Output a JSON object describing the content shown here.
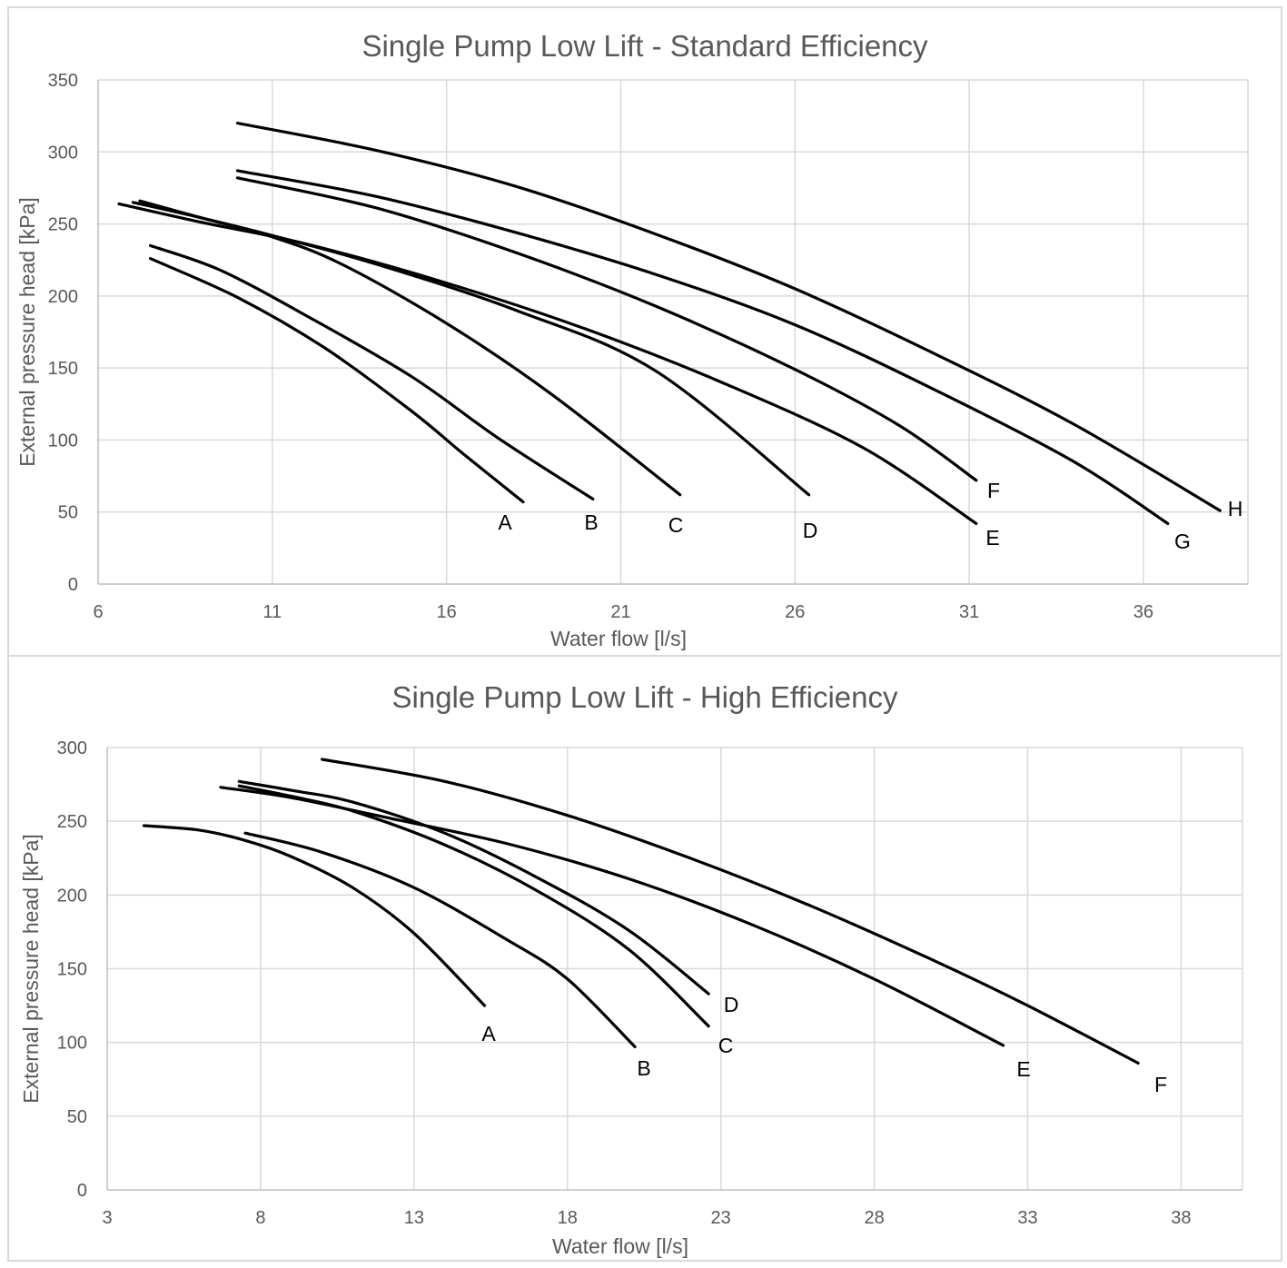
{
  "chart_data": [
    {
      "type": "line",
      "title": "Single Pump Low Lift - Standard Efficiency",
      "xlabel": "Water flow [l/s]",
      "ylabel": "External pressure head [kPa]",
      "xlim": [
        6,
        39
      ],
      "ylim": [
        0,
        350
      ],
      "xticks": [
        "6",
        "11",
        "16",
        "21",
        "26",
        "31",
        "36"
      ],
      "yticks": [
        "0",
        "50",
        "100",
        "150",
        "200",
        "250",
        "300",
        "350"
      ],
      "grid": true,
      "legend": "none",
      "series": [
        {
          "name": "A",
          "points": [
            [
              7.5,
              226
            ],
            [
              10,
              199
            ],
            [
              12.5,
              164
            ],
            [
              15,
              120
            ],
            [
              16.5,
              90
            ],
            [
              18.2,
              57
            ]
          ]
        },
        {
          "name": "B",
          "points": [
            [
              7.5,
              235
            ],
            [
              9.5,
              218
            ],
            [
              12,
              186
            ],
            [
              15,
              144
            ],
            [
              17.5,
              101
            ],
            [
              20.2,
              59
            ]
          ]
        },
        {
          "name": "C",
          "points": [
            [
              7.2,
              266
            ],
            [
              9,
              254
            ],
            [
              11,
              241
            ],
            [
              13,
              222
            ],
            [
              16,
              181
            ],
            [
              19,
              132
            ],
            [
              22.7,
              62
            ]
          ]
        },
        {
          "name": "D",
          "points": [
            [
              7,
              265
            ],
            [
              9,
              254
            ],
            [
              11,
              242
            ],
            [
              14,
              222
            ],
            [
              18,
              190
            ],
            [
              22,
              148
            ],
            [
              26.4,
              62
            ]
          ]
        },
        {
          "name": "E",
          "points": [
            [
              6.6,
              264
            ],
            [
              9,
              251
            ],
            [
              12,
              236
            ],
            [
              16,
              209
            ],
            [
              20,
              177
            ],
            [
              24,
              139
            ],
            [
              28,
              94
            ],
            [
              31.2,
              42
            ]
          ]
        },
        {
          "name": "F",
          "points": [
            [
              10,
              282
            ],
            [
              14,
              261
            ],
            [
              18,
              230
            ],
            [
              22,
              193
            ],
            [
              26,
              149
            ],
            [
              29,
              110
            ],
            [
              31.2,
              72
            ]
          ]
        },
        {
          "name": "G",
          "points": [
            [
              10,
              287
            ],
            [
              14,
              269
            ],
            [
              18,
              244
            ],
            [
              22,
              215
            ],
            [
              26,
              180
            ],
            [
              30,
              135
            ],
            [
              34,
              85
            ],
            [
              36.7,
              42
            ]
          ]
        },
        {
          "name": "H",
          "points": [
            [
              10,
              320
            ],
            [
              14,
              301
            ],
            [
              18,
              276
            ],
            [
              22,
              243
            ],
            [
              26,
              205
            ],
            [
              30,
              160
            ],
            [
              34,
              111
            ],
            [
              38.2,
              51
            ]
          ]
        }
      ],
      "labels": [
        "A",
        "B",
        "C",
        "D",
        "E",
        "F",
        "G",
        "H"
      ]
    },
    {
      "type": "line",
      "title": "Single Pump Low Lift - High Efficiency",
      "xlabel": "Water flow [l/s]",
      "ylabel": "External pressure head [kPa]",
      "xlim": [
        3,
        40
      ],
      "ylim": [
        0,
        300
      ],
      "xticks": [
        "3",
        "8",
        "13",
        "18",
        "23",
        "28",
        "33",
        "38"
      ],
      "yticks": [
        "0",
        "50",
        "100",
        "150",
        "200",
        "250",
        "300"
      ],
      "grid": true,
      "legend": "none",
      "series": [
        {
          "name": "A",
          "points": [
            [
              4.2,
              247
            ],
            [
              6,
              244
            ],
            [
              7.5,
              237
            ],
            [
              9,
              226
            ],
            [
              11,
              205
            ],
            [
              13,
              174
            ],
            [
              15.3,
              125
            ]
          ]
        },
        {
          "name": "B",
          "points": [
            [
              7.5,
              242
            ],
            [
              10,
              229
            ],
            [
              13,
              205
            ],
            [
              16,
              170
            ],
            [
              18,
              143
            ],
            [
              20.2,
              97
            ]
          ]
        },
        {
          "name": "C",
          "points": [
            [
              7.3,
              274
            ],
            [
              9,
              267
            ],
            [
              11,
              257
            ],
            [
              14,
              234
            ],
            [
              17,
              203
            ],
            [
              20,
              163
            ],
            [
              22.6,
              111
            ]
          ]
        },
        {
          "name": "D",
          "points": [
            [
              7.3,
              277
            ],
            [
              9,
              271
            ],
            [
              11,
              263
            ],
            [
              14,
              242
            ],
            [
              17,
              212
            ],
            [
              20,
              176
            ],
            [
              22.6,
              133
            ]
          ]
        },
        {
          "name": "E",
          "points": [
            [
              6.7,
              273
            ],
            [
              9,
              266
            ],
            [
              12,
              253
            ],
            [
              16,
              235
            ],
            [
              20,
              211
            ],
            [
              24,
              180
            ],
            [
              28,
              143
            ],
            [
              32.2,
              98
            ]
          ]
        },
        {
          "name": "F",
          "points": [
            [
              10,
              292
            ],
            [
              14,
              277
            ],
            [
              18,
              254
            ],
            [
              22,
              225
            ],
            [
              26,
              192
            ],
            [
              30,
              155
            ],
            [
              33,
              125
            ],
            [
              36.6,
              86
            ]
          ]
        }
      ],
      "labels": [
        "A",
        "B",
        "C",
        "D",
        "E",
        "F"
      ]
    }
  ]
}
